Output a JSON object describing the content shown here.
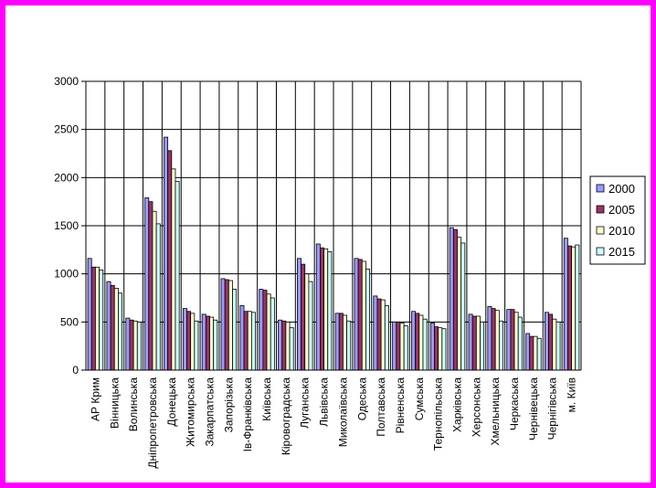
{
  "chart_data": {
    "type": "bar",
    "title": "",
    "xlabel": "",
    "ylabel": "",
    "ylim": [
      0,
      3000
    ],
    "yticks": [
      0,
      500,
      1000,
      1500,
      2000,
      2500,
      3000
    ],
    "grid": true,
    "legend_position": "right",
    "colors": [
      "#9999ff",
      "#993366",
      "#ffffcc",
      "#ccffff"
    ],
    "categories": [
      "АР Крим",
      "Вінницька",
      "Волинська",
      "Дніпропетровська",
      "Донецька",
      "Житомирська",
      "Закарпатська",
      "Запорізька",
      "Ів-Франківська",
      "Київська",
      "Кіровоградська",
      "Луганська",
      "Львівська",
      "Миколаївська",
      "Одеська",
      "Полтавська",
      "Рівненська",
      "Сумська",
      "Тернопільська",
      "Харківська",
      "Херсонська",
      "Хмельницька",
      "Черкаська",
      "Чернівецька",
      "Чернігівська",
      "м. Київ"
    ],
    "series": [
      {
        "name": "2000",
        "values": [
          1160,
          920,
          540,
          1790,
          2420,
          640,
          580,
          950,
          670,
          840,
          520,
          1160,
          1310,
          590,
          1160,
          770,
          500,
          610,
          490,
          1480,
          580,
          660,
          630,
          380,
          600,
          1370
        ]
      },
      {
        "name": "2005",
        "values": [
          1070,
          880,
          520,
          1750,
          2280,
          610,
          560,
          940,
          610,
          830,
          510,
          1100,
          1270,
          590,
          1150,
          740,
          500,
          590,
          450,
          1460,
          560,
          640,
          630,
          350,
          580,
          1290
        ]
      },
      {
        "name": "2010",
        "values": [
          1070,
          850,
          510,
          1650,
          2090,
          590,
          550,
          930,
          610,
          790,
          500,
          1000,
          1260,
          570,
          1130,
          730,
          490,
          570,
          440,
          1380,
          560,
          620,
          600,
          350,
          530,
          1280
        ]
      },
      {
        "name": "2015",
        "values": [
          1040,
          800,
          500,
          1520,
          1960,
          510,
          520,
          840,
          600,
          750,
          440,
          920,
          1230,
          510,
          1050,
          670,
          460,
          530,
          430,
          1320,
          500,
          510,
          550,
          330,
          500,
          1300
        ]
      }
    ]
  }
}
